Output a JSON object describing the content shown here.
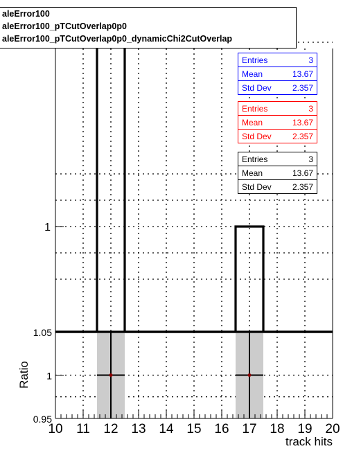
{
  "legend": {
    "entries": [
      "aleError100",
      "aleError100_pTCutOverlap0p0",
      "aleError100_pTCutOverlap0p0_dynamicChi2CutOverlap"
    ]
  },
  "stats_boxes": [
    {
      "color": "#0000ff",
      "rows": [
        {
          "k": "Entries",
          "v": "3"
        },
        {
          "k": "Mean",
          "v": "13.67"
        },
        {
          "k": "Std Dev",
          "v": "2.357"
        }
      ]
    },
    {
      "color": "#ff0000",
      "rows": [
        {
          "k": "Entries",
          "v": "3"
        },
        {
          "k": "Mean",
          "v": "13.67"
        },
        {
          "k": "Std Dev",
          "v": "2.357"
        }
      ]
    },
    {
      "color": "#000000",
      "rows": [
        {
          "k": "Entries",
          "v": "3"
        },
        {
          "k": "Mean",
          "v": "13.67"
        },
        {
          "k": "Std Dev",
          "v": "2.357"
        }
      ]
    }
  ],
  "chart_data": [
    {
      "type": "bar",
      "panel": "top histogram",
      "bins": [
        {
          "x0": 11.5,
          "x1": 12.5,
          "y": 2
        },
        {
          "x0": 16.5,
          "x1": 17.5,
          "y": 1
        }
      ],
      "y_label_ticks": [
        "1"
      ],
      "grid": true
    },
    {
      "type": "scatter",
      "panel": "ratio",
      "x": [
        12,
        17
      ],
      "y": [
        1,
        1
      ],
      "xerr": 0.5,
      "band_halfwidth": 0.5,
      "xlim": [
        10,
        20
      ],
      "ylim": [
        0.95,
        1.05
      ],
      "xlabel": "track hits",
      "ylabel": "Ratio",
      "x_tick_labels": [
        "10",
        "11",
        "12",
        "13",
        "14",
        "15",
        "16",
        "17",
        "18",
        "19",
        "20"
      ],
      "y_tick_labels": [
        "0.95",
        "1",
        "1.05"
      ],
      "grid": true
    }
  ]
}
